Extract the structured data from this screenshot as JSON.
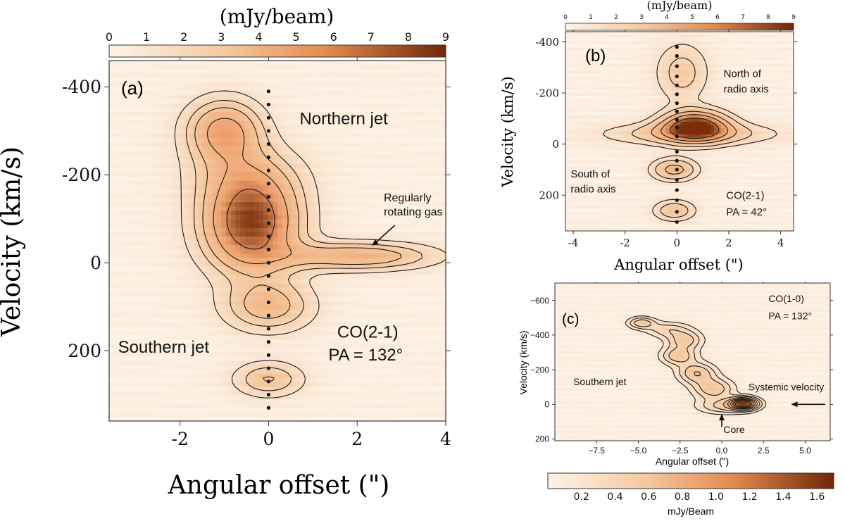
{
  "figure": {
    "colors": {
      "map_low": "#fdf3e8",
      "map_mid": "#eea06b",
      "map_high": "#7a2e0a",
      "contour": "#1a1a1a",
      "dot": "#111111"
    }
  },
  "chart_data": [
    {
      "id": "a",
      "type": "heatmap",
      "panel_label": "(a)",
      "title": "",
      "colorbar": {
        "label": "(mJy/beam)",
        "range": [
          0,
          9
        ],
        "ticks": [
          "0",
          "1",
          "2",
          "3",
          "4",
          "5",
          "6",
          "7",
          "8",
          "9"
        ],
        "placement": "top"
      },
      "xlabel": "Angular offset (\")",
      "ylabel": "Velocity (km/s)",
      "xlim": [
        -3.6,
        4.0
      ],
      "ylim": [
        -460,
        360
      ],
      "y_inverted": true,
      "xticks": [
        {
          "v": -2,
          "t": "-2"
        },
        {
          "v": 0,
          "t": "0"
        },
        {
          "v": 2,
          "t": "2"
        },
        {
          "v": 4,
          "t": "4"
        }
      ],
      "yticks": [
        {
          "v": -400,
          "t": "-400"
        },
        {
          "v": -200,
          "t": "-200"
        },
        {
          "v": 0,
          "t": "0"
        },
        {
          "v": 200,
          "t": "200"
        }
      ],
      "annotations": [
        {
          "text": "Northern jet",
          "x": 0.7,
          "y": -315
        },
        {
          "text": "Regularly",
          "x": 2.6,
          "y": -140
        },
        {
          "text": "rotating gas",
          "x": 2.6,
          "y": -108
        },
        {
          "text": "Southern jet",
          "x": -3.4,
          "y": 205
        },
        {
          "text": "CO(2-1)",
          "x": 1.55,
          "y": 170
        },
        {
          "text": "PA = 132°",
          "x": 1.35,
          "y": 222
        }
      ],
      "arrow": {
        "from": [
          2.85,
          -85
        ],
        "to": [
          2.35,
          -40
        ]
      },
      "components": [
        {
          "name": "northern-knot",
          "x": -1.0,
          "v": -300,
          "peak": 5.2,
          "sx": 0.6,
          "sv": 50
        },
        {
          "name": "central-blob",
          "x": -0.4,
          "v": -90,
          "peak": 8.2,
          "sx": 0.75,
          "sv": 75
        },
        {
          "name": "rotating-tail",
          "x": 2.0,
          "v": -15,
          "peak": 4.3,
          "sx": 1.2,
          "sv": 22
        },
        {
          "name": "bridge",
          "x": -0.5,
          "v": -200,
          "peak": 2.0,
          "sx": 0.9,
          "sv": 50
        },
        {
          "name": "southern-knot-1",
          "x": 0.0,
          "v": 100,
          "peak": 3.6,
          "sx": 0.7,
          "sv": 40
        },
        {
          "name": "southern-knot-2",
          "x": 0.0,
          "v": 265,
          "peak": 3.1,
          "sx": 0.55,
          "sv": 28
        }
      ],
      "contour_levels": [
        1.0,
        2.0,
        3.0,
        4.5,
        6.5
      ],
      "core_line_x": 0,
      "core_dots_v": [
        -390,
        -360,
        -330,
        -300,
        -270,
        -240,
        -210,
        -180,
        -150,
        -120,
        -90,
        -60,
        -30,
        0,
        30,
        60,
        90,
        120,
        150,
        180,
        210,
        240,
        270,
        300,
        330
      ]
    },
    {
      "id": "b",
      "type": "heatmap",
      "panel_label": "(b)",
      "title": "",
      "colorbar": {
        "label": "(mJy/beam)",
        "range": [
          0,
          9
        ],
        "ticks": [
          "0",
          "1",
          "2",
          "3",
          "4",
          "5",
          "6",
          "7",
          "8",
          "9"
        ],
        "placement": "top"
      },
      "xlabel": "Angular offset (\")",
      "ylabel": "Velocity (km/s)",
      "xlim": [
        -4.3,
        4.5
      ],
      "ylim": [
        -440,
        340
      ],
      "y_inverted": true,
      "xticks": [
        {
          "v": -4,
          "t": "-4"
        },
        {
          "v": -2,
          "t": "-2"
        },
        {
          "v": 0,
          "t": "0"
        },
        {
          "v": 2,
          "t": "2"
        },
        {
          "v": 4,
          "t": "4"
        }
      ],
      "yticks": [
        {
          "v": -400,
          "t": "-400"
        },
        {
          "v": -200,
          "t": "-200"
        },
        {
          "v": 0,
          "t": "0"
        },
        {
          "v": 200,
          "t": "200"
        }
      ],
      "annotations": [
        {
          "text": "North of",
          "x": 1.8,
          "y": -262
        },
        {
          "text": "radio axis",
          "x": 1.8,
          "y": -202
        },
        {
          "text": "South of",
          "x": -4.1,
          "y": 130
        },
        {
          "text": "radio axis",
          "x": -4.1,
          "y": 190
        },
        {
          "text": "CO(2-1)",
          "x": 1.9,
          "y": 215
        },
        {
          "text": "PA = 42°",
          "x": 1.9,
          "y": 280
        }
      ],
      "components": [
        {
          "name": "north-extension",
          "x": 0.2,
          "v": -280,
          "peak": 2.6,
          "sx": 0.7,
          "sv": 80
        },
        {
          "name": "central-disk",
          "x": 0.7,
          "v": -70,
          "peak": 8.8,
          "sx": 0.85,
          "sv": 40
        },
        {
          "name": "wide-disk",
          "x": 0.5,
          "v": -40,
          "peak": 3.2,
          "sx": 2.2,
          "sv": 30
        },
        {
          "name": "south-knot-1",
          "x": -0.1,
          "v": 100,
          "peak": 4.2,
          "sx": 0.6,
          "sv": 30
        },
        {
          "name": "south-knot-2",
          "x": -0.1,
          "v": 260,
          "peak": 3.2,
          "sx": 0.55,
          "sv": 28
        }
      ],
      "contour_levels": [
        1.0,
        2.0,
        3.5,
        5.0,
        7.0
      ],
      "core_line_x": 0,
      "core_dots_v": [
        -380,
        -345,
        -305,
        -265,
        -230,
        -195,
        -160,
        -128,
        -95,
        -65,
        -30,
        30,
        65,
        100,
        140,
        180,
        220,
        265,
        305
      ]
    },
    {
      "id": "c",
      "type": "heatmap",
      "panel_label": "(c)",
      "title": "",
      "colorbar": {
        "label": "mJy/Beam",
        "range": [
          0.0,
          1.7
        ],
        "ticks": [
          "0.2",
          "0.4",
          "0.6",
          "0.8",
          "1.0",
          "1.2",
          "1.4",
          "1.6"
        ],
        "tick_values": [
          0.2,
          0.4,
          0.6,
          0.8,
          1.0,
          1.2,
          1.4,
          1.6
        ],
        "placement": "bottom"
      },
      "xlabel": "Angular offset (\")",
      "ylabel": "Velocity (km/s)",
      "xlim": [
        -10,
        6.5
      ],
      "ylim": [
        -700,
        210
      ],
      "y_inverted": true,
      "xticks": [
        {
          "v": -7.5,
          "t": "−7.5"
        },
        {
          "v": -5,
          "t": "−5.0"
        },
        {
          "v": -2.5,
          "t": "−2.5"
        },
        {
          "v": 0,
          "t": "0.0"
        },
        {
          "v": 2.5,
          "t": "2.5"
        },
        {
          "v": 5,
          "t": "5.0"
        }
      ],
      "yticks": [
        {
          "v": -600,
          "t": "−600"
        },
        {
          "v": -400,
          "t": "−400"
        },
        {
          "v": -200,
          "t": "−200"
        },
        {
          "v": 0,
          "t": "0"
        },
        {
          "v": 200,
          "t": "200"
        }
      ],
      "annotations": [
        {
          "text": "CO(1-0)",
          "x": 2.8,
          "y": -590
        },
        {
          "text": "PA = 132°",
          "x": 2.8,
          "y": -490
        },
        {
          "text": "Southern jet",
          "x": -8.9,
          "y": -110
        },
        {
          "text": "Systemic velocity",
          "x": 1.6,
          "y": -80
        },
        {
          "text": "Core",
          "x": 0.1,
          "y": 165
        }
      ],
      "arrows": [
        {
          "from": [
            6.2,
            0
          ],
          "to": [
            4.2,
            0
          ]
        },
        {
          "from": [
            0.0,
            130
          ],
          "to": [
            0.0,
            60
          ]
        }
      ],
      "components": [
        {
          "name": "knot-far",
          "x": -4.8,
          "v": -470,
          "peak": 0.55,
          "sx": 0.55,
          "sv": 22
        },
        {
          "name": "knot-2",
          "x": -3.2,
          "v": -430,
          "peak": 0.35,
          "sx": 0.9,
          "sv": 30
        },
        {
          "name": "knot-3",
          "x": -2.2,
          "v": -370,
          "peak": 0.5,
          "sx": 0.7,
          "sv": 35
        },
        {
          "name": "knot-4",
          "x": -2.6,
          "v": -280,
          "peak": 0.55,
          "sx": 0.7,
          "sv": 35
        },
        {
          "name": "knot-5",
          "x": -1.5,
          "v": -180,
          "peak": 0.6,
          "sx": 0.75,
          "sv": 40
        },
        {
          "name": "knot-6",
          "x": -0.5,
          "v": -90,
          "peak": 0.55,
          "sx": 0.8,
          "sv": 40
        },
        {
          "name": "core-disk",
          "x": 1.3,
          "v": -5,
          "peak": 1.65,
          "sx": 0.55,
          "sv": 22
        },
        {
          "name": "core-tail",
          "x": 0.2,
          "v": 10,
          "peak": 0.45,
          "sx": 1.1,
          "sv": 30
        }
      ],
      "contour_levels": [
        0.12,
        0.25,
        0.4,
        0.6,
        0.8,
        1.0,
        1.2,
        1.4
      ]
    }
  ]
}
